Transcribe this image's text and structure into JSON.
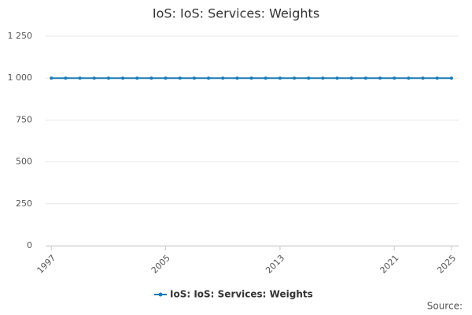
{
  "chart_data": {
    "type": "line",
    "title": "IoS: IoS: Services: Weights",
    "source": "Source:",
    "x": [
      1997,
      1998,
      1999,
      2000,
      2001,
      2002,
      2003,
      2004,
      2005,
      2006,
      2007,
      2008,
      2009,
      2010,
      2011,
      2012,
      2013,
      2014,
      2015,
      2016,
      2017,
      2018,
      2019,
      2020,
      2021,
      2022,
      2023,
      2024,
      2025
    ],
    "series": [
      {
        "name": "IoS: IoS: Services: Weights",
        "color": "#1a7ab8",
        "values": [
          1000,
          1000,
          1000,
          1000,
          1000,
          1000,
          1000,
          1000,
          1000,
          1000,
          1000,
          1000,
          1000,
          1000,
          1000,
          1000,
          1000,
          1000,
          1000,
          1000,
          1000,
          1000,
          1000,
          1000,
          1000,
          1000,
          1000,
          1000,
          1000
        ]
      }
    ],
    "xlim": [
      1996.6,
      2025.5
    ],
    "xticks": [
      1997,
      2005,
      2013,
      2021,
      2025
    ],
    "ylim": [
      0,
      1250
    ],
    "yticks": [
      0,
      250,
      500,
      750,
      {
        "value": 1000,
        "label": "1 000"
      },
      {
        "value": 1250,
        "label": "1 250"
      }
    ],
    "grid": true
  }
}
